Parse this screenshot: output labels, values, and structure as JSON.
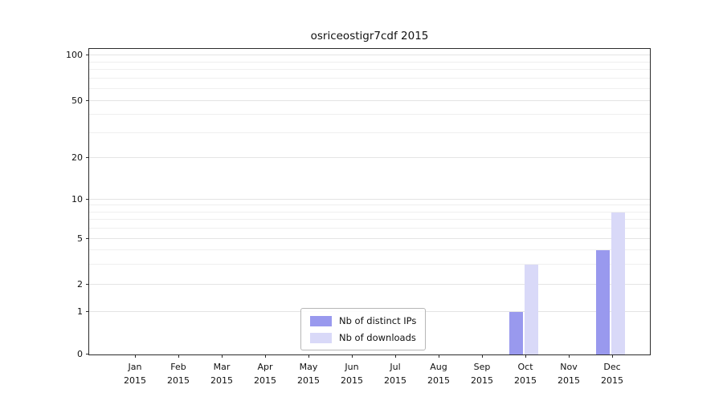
{
  "chart_data": {
    "type": "bar",
    "title": "osriceostigr7cdf 2015",
    "x_categories": [
      "Jan 2015",
      "Feb 2015",
      "Mar 2015",
      "Apr 2015",
      "May 2015",
      "Jun 2015",
      "Jul 2015",
      "Aug 2015",
      "Sep 2015",
      "Oct 2015",
      "Nov 2015",
      "Dec 2015"
    ],
    "series": [
      {
        "name": "Nb of distinct IPs",
        "color": "#9999ee",
        "values": [
          0,
          0,
          0,
          0,
          0,
          0,
          0,
          0,
          0,
          1,
          0,
          4
        ]
      },
      {
        "name": "Nb of downloads",
        "color": "#d9d9f8",
        "values": [
          0,
          0,
          0,
          0,
          0,
          0,
          0,
          0,
          0,
          3,
          0,
          8
        ]
      }
    ],
    "y_ticks": [
      0,
      1,
      2,
      5,
      10,
      20,
      50,
      100
    ],
    "y_minor_ticks": [
      3,
      4,
      6,
      7,
      8,
      9,
      30,
      40,
      60,
      70,
      80,
      90
    ],
    "y_scale": "log above 1, linear 0-1",
    "ylim": [
      0,
      100
    ],
    "xlabel": "",
    "ylabel": "",
    "grid": true,
    "legend": {
      "position": "lower center",
      "items": [
        "Nb of distinct IPs",
        "Nb of downloads"
      ]
    }
  }
}
